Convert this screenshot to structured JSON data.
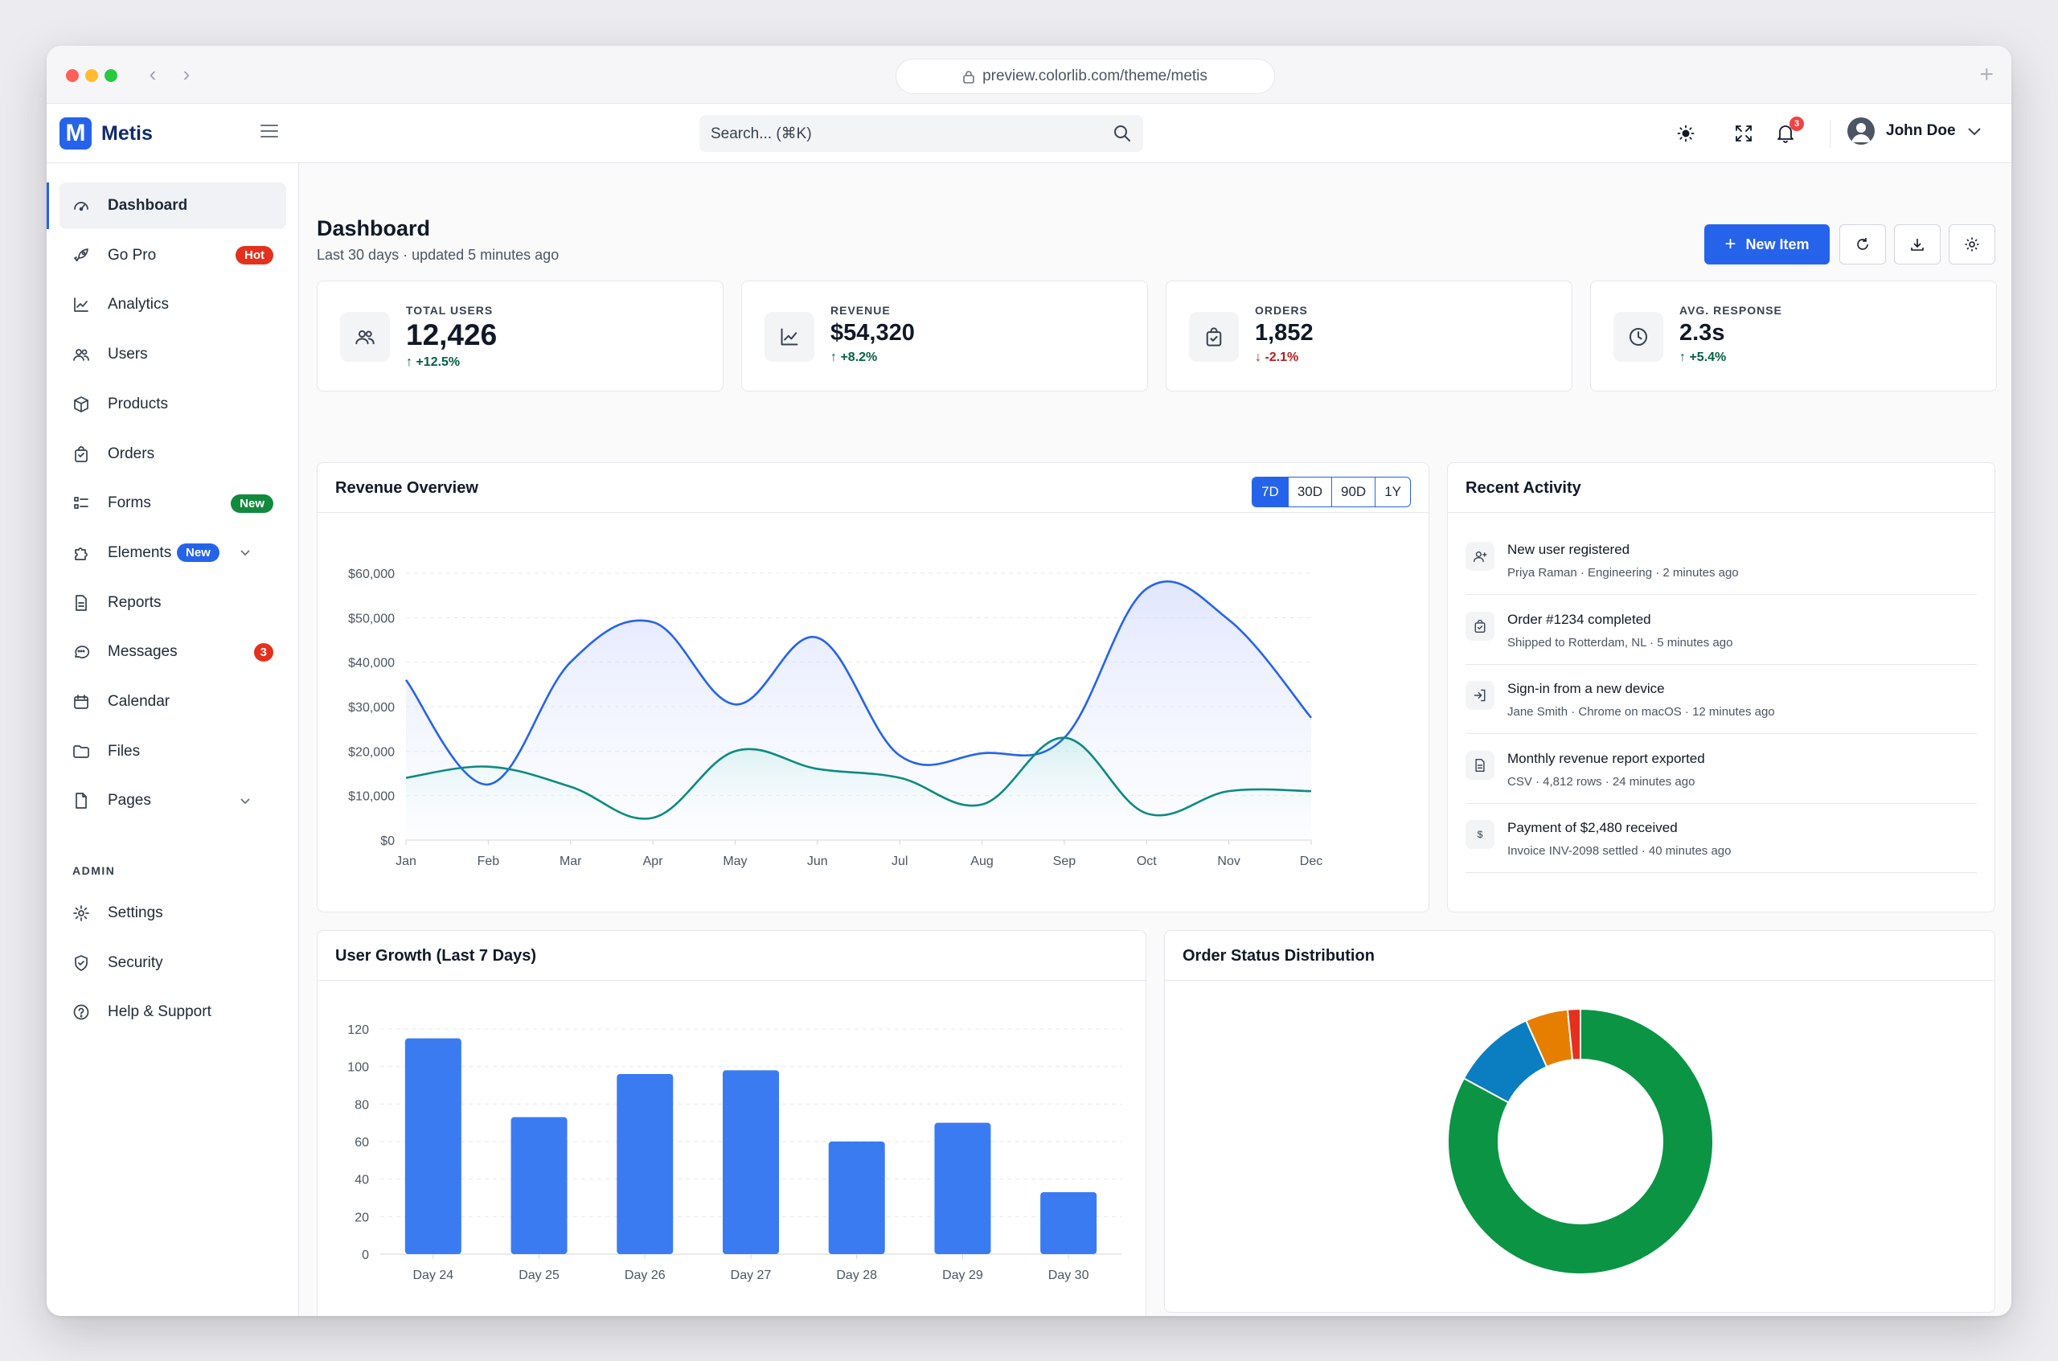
{
  "browser": {
    "url": "preview.colorlib.com/theme/metis"
  },
  "app": {
    "brand": "Metis",
    "logo_letter": "M",
    "search_placeholder": "Search... (⌘K)",
    "notification_count": "3",
    "user_name": "John Doe"
  },
  "sidebar": {
    "items": [
      {
        "label": "Dashboard",
        "icon": "dashboard-icon",
        "active": true
      },
      {
        "label": "Go Pro",
        "icon": "rocket-icon",
        "badge": "Hot"
      },
      {
        "label": "Analytics",
        "icon": "chart-line-icon"
      },
      {
        "label": "Users",
        "icon": "users-icon"
      },
      {
        "label": "Products",
        "icon": "box-icon"
      },
      {
        "label": "Orders",
        "icon": "bag-icon"
      },
      {
        "label": "Forms",
        "icon": "form-list-icon",
        "badge": "New"
      },
      {
        "label": "Elements",
        "icon": "puzzle-icon",
        "badge": "New",
        "expandable": true
      },
      {
        "label": "Reports",
        "icon": "file-text-icon"
      },
      {
        "label": "Messages",
        "icon": "chat-icon",
        "badge": "3"
      },
      {
        "label": "Calendar",
        "icon": "calendar-icon"
      },
      {
        "label": "Files",
        "icon": "folder-icon"
      },
      {
        "label": "Pages",
        "icon": "page-icon",
        "expandable": true
      }
    ],
    "section_label": "ADMIN",
    "admin_items": [
      {
        "label": "Settings",
        "icon": "gear-icon"
      },
      {
        "label": "Security",
        "icon": "shield-icon"
      },
      {
        "label": "Help & Support",
        "icon": "help-circle-icon"
      }
    ]
  },
  "page": {
    "title": "Dashboard",
    "subtitle": "Last 30 days · updated 5 minutes ago",
    "new_item_label": "New Item"
  },
  "stats": [
    {
      "label": "TOTAL USERS",
      "value": "12,426",
      "delta": "↑ +12.5%",
      "trend": "up",
      "icon": "users-icon"
    },
    {
      "label": "REVENUE",
      "value": "$54,320",
      "delta": "↑ +8.2%",
      "trend": "up",
      "icon": "chart-line-icon"
    },
    {
      "label": "ORDERS",
      "value": "1,852",
      "delta": "↓ -2.1%",
      "trend": "down",
      "icon": "bag-check-icon"
    },
    {
      "label": "AVG. RESPONSE",
      "value": "2.3s",
      "delta": "↑ +5.4%",
      "trend": "up",
      "icon": "clock-icon"
    }
  ],
  "revenue": {
    "title": "Revenue Overview",
    "ranges": [
      "7D",
      "30D",
      "90D",
      "1Y"
    ],
    "selected_range": "7D"
  },
  "activity": {
    "title": "Recent Activity",
    "items": [
      {
        "title": "New user registered",
        "meta": "Priya Raman · Engineering · 2 minutes ago",
        "icon": "user-plus-icon"
      },
      {
        "title": "Order #1234 completed",
        "meta": "Shipped to Rotterdam, NL · 5 minutes ago",
        "icon": "bag-check-icon"
      },
      {
        "title": "Sign-in from a new device",
        "meta": "Jane Smith · Chrome on macOS · 12 minutes ago",
        "icon": "sign-in-icon"
      },
      {
        "title": "Monthly revenue report exported",
        "meta": "CSV · 4,812 rows · 24 minutes ago",
        "icon": "file-text-icon"
      },
      {
        "title": "Payment of $2,480 received",
        "meta": "Invoice INV-2098 settled · 40 minutes ago",
        "icon": "dollar-icon"
      }
    ]
  },
  "user_growth": {
    "title": "User Growth (Last 7 Days)"
  },
  "order_status": {
    "title": "Order Status Distribution"
  },
  "colors": {
    "primary": "#2563eb",
    "teal": "#0d8a82",
    "bar": "#3b7bf2",
    "green": "#0b9444",
    "blue_slice": "#0a7ec0",
    "orange_slice": "#e67e00",
    "red_slice": "#e3311d",
    "hot": "#e3311d",
    "new": "#118a3e"
  },
  "chart_data": [
    {
      "type": "area",
      "categories": [
        "Jan",
        "Feb",
        "Mar",
        "Apr",
        "May",
        "Jun",
        "Jul",
        "Aug",
        "Sep",
        "Oct",
        "Nov",
        "Dec"
      ],
      "ylim": [
        0,
        60000
      ],
      "yticks": [
        "$0",
        "$10,000",
        "$20,000",
        "$30,000",
        "$40,000",
        "$50,000",
        "$60,000"
      ],
      "series": [
        {
          "values": [
            36000,
            12500,
            40000,
            49000,
            30500,
            45500,
            19000,
            19500,
            23000,
            56500,
            49500,
            27500
          ]
        },
        {
          "values": [
            14000,
            16500,
            12000,
            5000,
            20000,
            16000,
            14000,
            8000,
            23000,
            6000,
            11000,
            11000
          ]
        }
      ]
    },
    {
      "type": "bar",
      "categories": [
        "Day 24",
        "Day 25",
        "Day 26",
        "Day 27",
        "Day 28",
        "Day 29",
        "Day 30"
      ],
      "values": [
        115,
        73,
        96,
        98,
        60,
        70,
        33
      ],
      "ylim": [
        0,
        120
      ],
      "yticks": [
        "0",
        "20",
        "40",
        "60",
        "80",
        "100",
        "120"
      ]
    },
    {
      "type": "pie",
      "values": [
        80,
        10,
        5,
        1.5
      ],
      "colors": [
        "#0b9444",
        "#0a7ec0",
        "#e67e00",
        "#e3311d"
      ]
    }
  ]
}
